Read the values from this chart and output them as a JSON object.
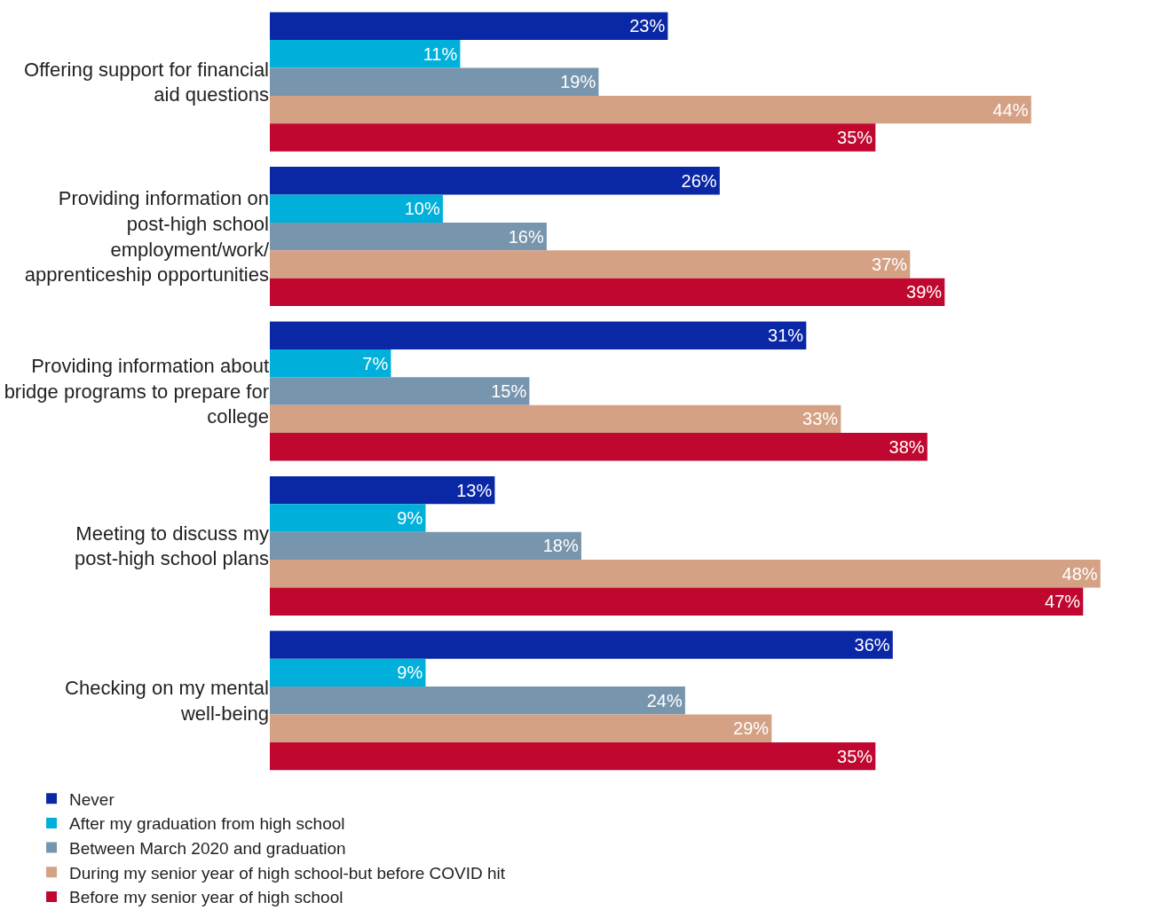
{
  "chart_data": {
    "type": "bar",
    "orientation": "horizontal",
    "categories": [
      "Offering support for financial aid questions",
      "Providing information on post-high school employment/work/ apprenticeship opportunities",
      "Providing information about bridge programs to prepare for college",
      "Meeting to discuss my post-high school plans",
      "Checking on my mental well-being"
    ],
    "series": [
      {
        "name": "Never",
        "color": "#0a27a6",
        "values": [
          23,
          26,
          31,
          13,
          36
        ],
        "value_labels": [
          "23%",
          "26%",
          "31%",
          "13%",
          "36%"
        ]
      },
      {
        "name": "After my graduation from high school",
        "color": "#00b0da",
        "values": [
          11,
          10,
          7,
          9,
          9
        ],
        "value_labels": [
          "11%",
          "10%",
          "7%",
          "9%",
          "9%"
        ]
      },
      {
        "name": "Between March 2020 and graduation",
        "color": "#7795ad",
        "values": [
          19,
          16,
          15,
          18,
          24
        ],
        "value_labels": [
          "19%",
          "16%",
          "15%",
          "18%",
          "24%"
        ]
      },
      {
        "name": "During my senior year of high school-but before COVID hit",
        "color": "#d4a185",
        "values": [
          44,
          37,
          33,
          48,
          29
        ],
        "value_labels": [
          "44%",
          "37%",
          "33%",
          "48%",
          "29%"
        ]
      },
      {
        "name": "Before my senior year of high school",
        "color": "#c0072f",
        "values": [
          35,
          39,
          38,
          47,
          35
        ],
        "value_labels": [
          "35%",
          "39%",
          "38%",
          "47%",
          "35%"
        ]
      }
    ],
    "legend": "bottom"
  }
}
